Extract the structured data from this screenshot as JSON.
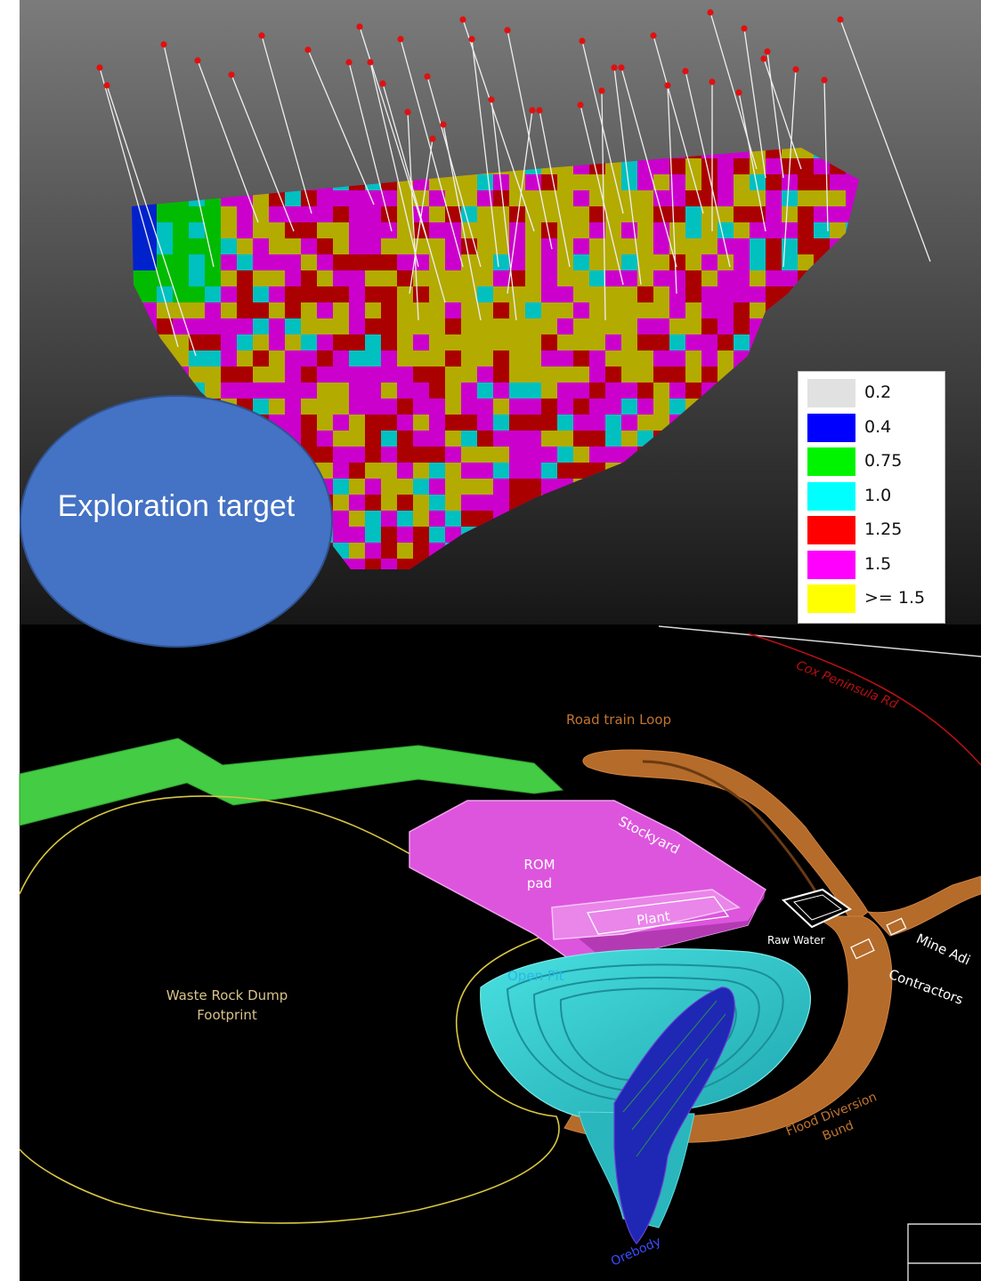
{
  "legend": {
    "items": [
      {
        "label": "0.2",
        "color": "#e1e1e1"
      },
      {
        "label": "0.4",
        "color": "#0000ff"
      },
      {
        "label": "0.75",
        "color": "#00f400"
      },
      {
        "label": "1.0",
        "color": "#00ffff"
      },
      {
        "label": "1.25",
        "color": "#ff0000"
      },
      {
        "label": "1.5",
        "color": "#ff00ff"
      },
      {
        "label": " >= 1.5",
        "color": "#ffff00"
      }
    ]
  },
  "callout": {
    "text": "Exploration target",
    "color": "#4472c4"
  },
  "layout": {
    "road": "Cox Peninsula Rd",
    "road_train_loop": "Road train Loop",
    "stockyard": "Stockyard",
    "rom_pad": "ROM pad",
    "plant": "Plant",
    "raw_water": "Raw Water",
    "mine_admin": "Mine Adi",
    "contractors": "Contractors",
    "open_pit": "Open Pit",
    "waste_rock_dump": "Waste Rock Dump Footprint",
    "flood_diversion_bund": "Flood Diversion Bund",
    "orebody": "Orebody"
  },
  "colors": {
    "rom_pad": "#dd55dd",
    "roads": "#c0702a",
    "pit": "#3fd7d7",
    "green_strip": "#44cc44"
  }
}
